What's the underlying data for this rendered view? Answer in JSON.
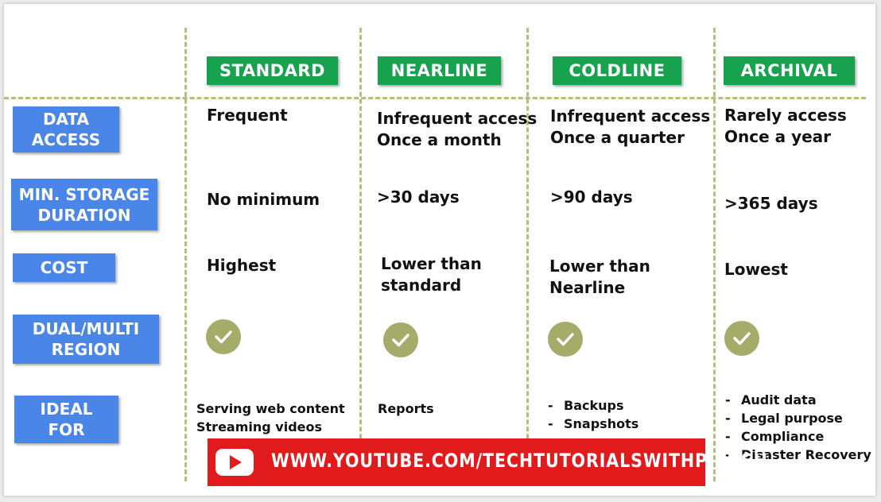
{
  "columns": {
    "standard": "STANDARD",
    "nearline": "NEARLINE",
    "coldline": "COLDLINE",
    "archival": "ARCHIVAL"
  },
  "row_labels": {
    "data_access": [
      "DATA",
      "ACCESS"
    ],
    "min_storage": [
      "MIN. STORAGE",
      "DURATION"
    ],
    "cost": [
      "COST"
    ],
    "dual_multi": [
      "DUAL/MULTI",
      "REGION"
    ],
    "ideal_for": [
      "IDEAL",
      "FOR"
    ]
  },
  "data_access": {
    "standard": [
      "Frequent"
    ],
    "nearline": [
      "Infrequent access",
      "Once a month"
    ],
    "coldline": [
      "Infrequent access",
      "Once a quarter"
    ],
    "archival": [
      "Rarely access",
      "Once a year"
    ]
  },
  "min_storage": {
    "standard": "No minimum",
    "nearline": ">30 days",
    "coldline": ">90 days",
    "archival": ">365 days"
  },
  "cost": {
    "standard": [
      "Highest"
    ],
    "nearline": [
      "Lower than",
      "standard"
    ],
    "coldline": [
      "Lower than",
      "Nearline"
    ],
    "archival": [
      "Lowest"
    ]
  },
  "dual_multi_region": {
    "standard": "check-icon",
    "nearline": "check-icon",
    "coldline": "check-icon",
    "archival": "check-icon"
  },
  "ideal_for": {
    "standard": [
      "Serving web content",
      "Streaming videos"
    ],
    "nearline": [
      "Reports"
    ],
    "coldline": [
      "Backups",
      "Snapshots"
    ],
    "archival": [
      "Audit data",
      "Legal purpose",
      "Compliance",
      "Disaster Recovery"
    ]
  },
  "bullet_char": "-",
  "banner": {
    "text": "WWW.YOUTUBE.COM/TECHTUTORIALSWITHPIYUSH",
    "icon": "youtube-play-icon"
  },
  "colors": {
    "header_green": "#17a24f",
    "label_blue": "#4a86e8",
    "check_olive": "#a5ac6a",
    "dash_line": "#b5bf7c",
    "banner_red": "#e11b1b"
  }
}
